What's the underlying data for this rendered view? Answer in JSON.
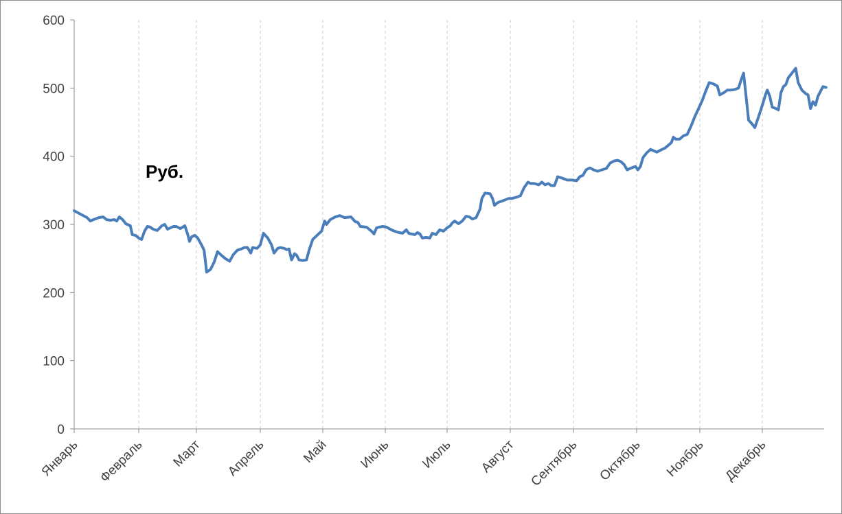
{
  "chart_data": {
    "type": "line",
    "unit_label": "Руб.",
    "ylim": [
      0,
      600
    ],
    "y_ticks": [
      "0",
      "100",
      "200",
      "300",
      "400",
      "500",
      "600"
    ],
    "categories": [
      "Январь",
      "Февраль",
      "Март",
      "Апрель",
      "Май",
      "Июнь",
      "Июль",
      "Август",
      "Сентябрь",
      "Октябрь",
      "Ноябрь",
      "Декабрь"
    ],
    "grid": "vertical dashed at months",
    "legend": "none",
    "line_color": "#4a7ebb",
    "x_range_months": [
      0,
      12
    ],
    "series": [
      {
        "points": [
          [
            0.0,
            320
          ],
          [
            0.1,
            315
          ],
          [
            0.2,
            310
          ],
          [
            0.25,
            305
          ],
          [
            0.3,
            307
          ],
          [
            0.38,
            310
          ],
          [
            0.45,
            311
          ],
          [
            0.5,
            307
          ],
          [
            0.56,
            306
          ],
          [
            0.62,
            307
          ],
          [
            0.66,
            305
          ],
          [
            0.7,
            311
          ],
          [
            0.75,
            307
          ],
          [
            0.8,
            301
          ],
          [
            0.87,
            298
          ],
          [
            0.9,
            285
          ],
          [
            0.95,
            284
          ],
          [
            1.0,
            280
          ],
          [
            1.05,
            278
          ],
          [
            1.1,
            290
          ],
          [
            1.15,
            297
          ],
          [
            1.2,
            296
          ],
          [
            1.25,
            293
          ],
          [
            1.32,
            291
          ],
          [
            1.4,
            298
          ],
          [
            1.45,
            300
          ],
          [
            1.5,
            293
          ],
          [
            1.55,
            295
          ],
          [
            1.6,
            297
          ],
          [
            1.65,
            297
          ],
          [
            1.72,
            294
          ],
          [
            1.8,
            298
          ],
          [
            1.85,
            285
          ],
          [
            1.88,
            275
          ],
          [
            1.92,
            282
          ],
          [
            1.97,
            284
          ],
          [
            2.02,
            280
          ],
          [
            2.08,
            270
          ],
          [
            2.12,
            262
          ],
          [
            2.16,
            230
          ],
          [
            2.22,
            234
          ],
          [
            2.28,
            245
          ],
          [
            2.33,
            260
          ],
          [
            2.4,
            254
          ],
          [
            2.45,
            250
          ],
          [
            2.52,
            246
          ],
          [
            2.58,
            256
          ],
          [
            2.64,
            262
          ],
          [
            2.7,
            264
          ],
          [
            2.75,
            266
          ],
          [
            2.8,
            266
          ],
          [
            2.85,
            258
          ],
          [
            2.88,
            266
          ],
          [
            2.95,
            265
          ],
          [
            3.0,
            270
          ],
          [
            3.05,
            287
          ],
          [
            3.12,
            280
          ],
          [
            3.18,
            270
          ],
          [
            3.22,
            258
          ],
          [
            3.28,
            265
          ],
          [
            3.32,
            266
          ],
          [
            3.38,
            265
          ],
          [
            3.42,
            263
          ],
          [
            3.46,
            264
          ],
          [
            3.5,
            248
          ],
          [
            3.55,
            257
          ],
          [
            3.58,
            255
          ],
          [
            3.62,
            248
          ],
          [
            3.68,
            247
          ],
          [
            3.74,
            248
          ],
          [
            3.78,
            262
          ],
          [
            3.84,
            278
          ],
          [
            3.92,
            285
          ],
          [
            3.98,
            290
          ],
          [
            4.03,
            305
          ],
          [
            4.06,
            300
          ],
          [
            4.12,
            307
          ],
          [
            4.2,
            311
          ],
          [
            4.27,
            313
          ],
          [
            4.35,
            310
          ],
          [
            4.45,
            311
          ],
          [
            4.52,
            304
          ],
          [
            4.56,
            303
          ],
          [
            4.6,
            297
          ],
          [
            4.7,
            296
          ],
          [
            4.78,
            290
          ],
          [
            4.82,
            286
          ],
          [
            4.86,
            295
          ],
          [
            4.9,
            296
          ],
          [
            4.96,
            297
          ],
          [
            5.02,
            296
          ],
          [
            5.08,
            293
          ],
          [
            5.15,
            290
          ],
          [
            5.22,
            288
          ],
          [
            5.28,
            287
          ],
          [
            5.34,
            292
          ],
          [
            5.38,
            287
          ],
          [
            5.42,
            286
          ],
          [
            5.48,
            285
          ],
          [
            5.52,
            288
          ],
          [
            5.56,
            286
          ],
          [
            5.6,
            280
          ],
          [
            5.66,
            281
          ],
          [
            5.72,
            280
          ],
          [
            5.76,
            287
          ],
          [
            5.82,
            285
          ],
          [
            5.88,
            292
          ],
          [
            5.94,
            290
          ],
          [
            6.0,
            295
          ],
          [
            6.05,
            298
          ],
          [
            6.08,
            302
          ],
          [
            6.12,
            305
          ],
          [
            6.18,
            301
          ],
          [
            6.24,
            305
          ],
          [
            6.3,
            312
          ],
          [
            6.35,
            311
          ],
          [
            6.4,
            308
          ],
          [
            6.46,
            310
          ],
          [
            6.52,
            322
          ],
          [
            6.55,
            338
          ],
          [
            6.6,
            346
          ],
          [
            6.68,
            345
          ],
          [
            6.72,
            338
          ],
          [
            6.75,
            328
          ],
          [
            6.8,
            332
          ],
          [
            6.86,
            334
          ],
          [
            6.92,
            336
          ],
          [
            6.97,
            338
          ],
          [
            7.02,
            338
          ],
          [
            7.1,
            340
          ],
          [
            7.16,
            342
          ],
          [
            7.22,
            354
          ],
          [
            7.28,
            362
          ],
          [
            7.32,
            360
          ],
          [
            7.38,
            360
          ],
          [
            7.45,
            358
          ],
          [
            7.5,
            362
          ],
          [
            7.55,
            358
          ],
          [
            7.6,
            360
          ],
          [
            7.65,
            357
          ],
          [
            7.7,
            357
          ],
          [
            7.75,
            370
          ],
          [
            7.82,
            368
          ],
          [
            7.9,
            365
          ],
          [
            7.98,
            365
          ],
          [
            8.05,
            364
          ],
          [
            8.1,
            370
          ],
          [
            8.15,
            372
          ],
          [
            8.2,
            380
          ],
          [
            8.26,
            383
          ],
          [
            8.32,
            380
          ],
          [
            8.38,
            378
          ],
          [
            8.45,
            380
          ],
          [
            8.52,
            382
          ],
          [
            8.58,
            390
          ],
          [
            8.64,
            393
          ],
          [
            8.7,
            394
          ],
          [
            8.75,
            392
          ],
          [
            8.8,
            388
          ],
          [
            8.85,
            380
          ],
          [
            8.92,
            383
          ],
          [
            8.98,
            385
          ],
          [
            9.02,
            380
          ],
          [
            9.06,
            385
          ],
          [
            9.1,
            398
          ],
          [
            9.16,
            405
          ],
          [
            9.22,
            410
          ],
          [
            9.27,
            408
          ],
          [
            9.32,
            406
          ],
          [
            9.38,
            409
          ],
          [
            9.45,
            412
          ],
          [
            9.5,
            416
          ],
          [
            9.55,
            420
          ],
          [
            9.58,
            428
          ],
          [
            9.62,
            425
          ],
          [
            9.68,
            425
          ],
          [
            9.74,
            430
          ],
          [
            9.8,
            432
          ],
          [
            9.86,
            444
          ],
          [
            9.92,
            458
          ],
          [
            9.98,
            470
          ],
          [
            10.04,
            482
          ],
          [
            10.1,
            497
          ],
          [
            10.15,
            508
          ],
          [
            10.22,
            506
          ],
          [
            10.28,
            503
          ],
          [
            10.32,
            490
          ],
          [
            10.38,
            493
          ],
          [
            10.44,
            497
          ],
          [
            10.5,
            497
          ],
          [
            10.56,
            498
          ],
          [
            10.62,
            500
          ],
          [
            10.66,
            512
          ],
          [
            10.7,
            522
          ],
          [
            10.74,
            488
          ],
          [
            10.78,
            453
          ],
          [
            10.84,
            447
          ],
          [
            10.88,
            442
          ],
          [
            10.94,
            458
          ],
          [
            11.0,
            475
          ],
          [
            11.05,
            490
          ],
          [
            11.08,
            497
          ],
          [
            11.12,
            488
          ],
          [
            11.16,
            472
          ],
          [
            11.22,
            470
          ],
          [
            11.26,
            468
          ],
          [
            11.3,
            493
          ],
          [
            11.34,
            502
          ],
          [
            11.38,
            505
          ],
          [
            11.42,
            515
          ],
          [
            11.48,
            522
          ],
          [
            11.54,
            529
          ],
          [
            11.58,
            508
          ],
          [
            11.64,
            497
          ],
          [
            11.7,
            492
          ],
          [
            11.74,
            490
          ],
          [
            11.78,
            470
          ],
          [
            11.82,
            480
          ],
          [
            11.86,
            475
          ],
          [
            11.9,
            488
          ],
          [
            11.94,
            495
          ],
          [
            11.98,
            502
          ],
          [
            12.03,
            501
          ]
        ]
      }
    ]
  }
}
